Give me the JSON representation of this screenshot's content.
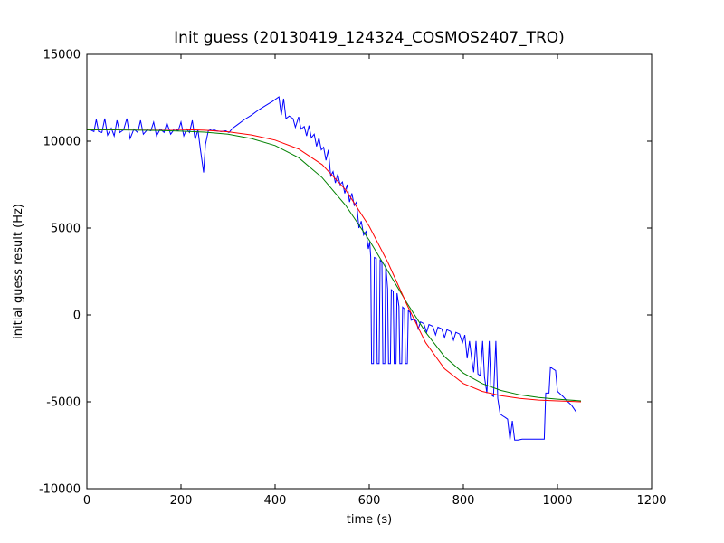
{
  "figure": {
    "background": "#ffffff",
    "axes_color": "#000000"
  },
  "chart_data": {
    "type": "line",
    "title": "Init guess (20130419_124324_COSMOS2407_TRO)",
    "xlabel": "time (s)",
    "ylabel": "initial guess result (Hz)",
    "xlim": [
      0,
      1200
    ],
    "ylim": [
      -10000,
      15000
    ],
    "xticks": [
      0,
      200,
      400,
      600,
      800,
      1000,
      1200
    ],
    "yticks": [
      -10000,
      -5000,
      0,
      5000,
      10000,
      15000
    ],
    "grid": false,
    "legend": "none",
    "series": [
      {
        "name": "blue-noisy-initial-guess",
        "color": "#0000ff",
        "points": [
          [
            0,
            10700
          ],
          [
            8,
            10650
          ],
          [
            15,
            10550
          ],
          [
            20,
            11250
          ],
          [
            25,
            10550
          ],
          [
            32,
            10500
          ],
          [
            38,
            11300
          ],
          [
            44,
            10350
          ],
          [
            52,
            10750
          ],
          [
            58,
            10300
          ],
          [
            64,
            11200
          ],
          [
            70,
            10500
          ],
          [
            78,
            10650
          ],
          [
            85,
            11300
          ],
          [
            92,
            10150
          ],
          [
            100,
            10700
          ],
          [
            108,
            10500
          ],
          [
            114,
            11200
          ],
          [
            120,
            10400
          ],
          [
            128,
            10650
          ],
          [
            136,
            10600
          ],
          [
            142,
            11100
          ],
          [
            148,
            10300
          ],
          [
            156,
            10700
          ],
          [
            164,
            10500
          ],
          [
            170,
            11050
          ],
          [
            178,
            10400
          ],
          [
            186,
            10700
          ],
          [
            194,
            10600
          ],
          [
            200,
            11100
          ],
          [
            206,
            10300
          ],
          [
            212,
            10700
          ],
          [
            218,
            10500
          ],
          [
            224,
            11200
          ],
          [
            230,
            10100
          ],
          [
            236,
            10650
          ],
          [
            242,
            9400
          ],
          [
            248,
            8200
          ],
          [
            252,
            9800
          ],
          [
            258,
            10600
          ],
          [
            266,
            10700
          ],
          [
            275,
            10600
          ],
          [
            285,
            10550
          ],
          [
            295,
            10600
          ],
          [
            302,
            10500
          ],
          [
            310,
            10750
          ],
          [
            320,
            10950
          ],
          [
            335,
            11250
          ],
          [
            350,
            11500
          ],
          [
            365,
            11800
          ],
          [
            380,
            12050
          ],
          [
            395,
            12300
          ],
          [
            408,
            12550
          ],
          [
            413,
            11500
          ],
          [
            418,
            12450
          ],
          [
            423,
            11300
          ],
          [
            430,
            11450
          ],
          [
            438,
            11300
          ],
          [
            443,
            10800
          ],
          [
            450,
            11400
          ],
          [
            455,
            10700
          ],
          [
            462,
            10850
          ],
          [
            467,
            10300
          ],
          [
            472,
            10900
          ],
          [
            477,
            10200
          ],
          [
            483,
            10400
          ],
          [
            488,
            9700
          ],
          [
            493,
            10200
          ],
          [
            498,
            9500
          ],
          [
            503,
            9650
          ],
          [
            508,
            8900
          ],
          [
            513,
            9500
          ],
          [
            518,
            8000
          ],
          [
            523,
            8250
          ],
          [
            528,
            7600
          ],
          [
            533,
            8100
          ],
          [
            538,
            7500
          ],
          [
            543,
            7650
          ],
          [
            548,
            7000
          ],
          [
            553,
            7500
          ],
          [
            558,
            6500
          ],
          [
            563,
            7000
          ],
          [
            568,
            6300
          ],
          [
            573,
            6500
          ],
          [
            578,
            5000
          ],
          [
            583,
            5400
          ],
          [
            588,
            4600
          ],
          [
            593,
            4800
          ],
          [
            598,
            3800
          ],
          [
            601,
            4200
          ],
          [
            603,
            3350
          ],
          [
            605,
            -2800
          ],
          [
            609,
            -2800
          ],
          [
            611,
            3300
          ],
          [
            615,
            3250
          ],
          [
            617,
            -2800
          ],
          [
            621,
            -2800
          ],
          [
            623,
            3150
          ],
          [
            627,
            3050
          ],
          [
            629,
            -2800
          ],
          [
            633,
            -2800
          ],
          [
            635,
            2950
          ],
          [
            639,
            1500
          ],
          [
            641,
            -2800
          ],
          [
            645,
            -2800
          ],
          [
            647,
            1450
          ],
          [
            651,
            1350
          ],
          [
            653,
            -2800
          ],
          [
            657,
            -2800
          ],
          [
            659,
            1250
          ],
          [
            663,
            500
          ],
          [
            665,
            -2800
          ],
          [
            669,
            -2800
          ],
          [
            671,
            450
          ],
          [
            675,
            350
          ],
          [
            677,
            -2800
          ],
          [
            681,
            -2800
          ],
          [
            683,
            250
          ],
          [
            687,
            150
          ],
          [
            689,
            -300
          ],
          [
            695,
            -250
          ],
          [
            700,
            -350
          ],
          [
            704,
            -800
          ],
          [
            709,
            -400
          ],
          [
            716,
            -500
          ],
          [
            722,
            -1000
          ],
          [
            727,
            -550
          ],
          [
            735,
            -650
          ],
          [
            741,
            -1150
          ],
          [
            746,
            -700
          ],
          [
            754,
            -800
          ],
          [
            760,
            -1300
          ],
          [
            765,
            -850
          ],
          [
            773,
            -950
          ],
          [
            779,
            -1450
          ],
          [
            784,
            -1000
          ],
          [
            792,
            -1100
          ],
          [
            798,
            -1600
          ],
          [
            803,
            -1150
          ],
          [
            808,
            -2500
          ],
          [
            813,
            -1500
          ],
          [
            818,
            -2600
          ],
          [
            822,
            -3300
          ],
          [
            827,
            -1500
          ],
          [
            831,
            -3400
          ],
          [
            836,
            -3500
          ],
          [
            841,
            -1500
          ],
          [
            845,
            -3600
          ],
          [
            850,
            -4500
          ],
          [
            855,
            -1500
          ],
          [
            859,
            -4600
          ],
          [
            864,
            -4700
          ],
          [
            869,
            -1500
          ],
          [
            873,
            -4800
          ],
          [
            878,
            -5700
          ],
          [
            883,
            -5800
          ],
          [
            889,
            -5900
          ],
          [
            894,
            -6000
          ],
          [
            899,
            -7200
          ],
          [
            904,
            -6100
          ],
          [
            909,
            -7200
          ],
          [
            916,
            -7200
          ],
          [
            925,
            -7150
          ],
          [
            935,
            -7150
          ],
          [
            945,
            -7150
          ],
          [
            955,
            -7150
          ],
          [
            965,
            -7150
          ],
          [
            972,
            -7150
          ],
          [
            975,
            -4500
          ],
          [
            982,
            -4500
          ],
          [
            985,
            -3000
          ],
          [
            990,
            -3100
          ],
          [
            996,
            -3200
          ],
          [
            1000,
            -4400
          ],
          [
            1006,
            -4550
          ],
          [
            1012,
            -4700
          ],
          [
            1020,
            -4950
          ],
          [
            1030,
            -5200
          ],
          [
            1040,
            -5600
          ]
        ]
      },
      {
        "name": "green-smooth-fit",
        "color": "#008000",
        "points": [
          [
            0,
            10650
          ],
          [
            50,
            10650
          ],
          [
            100,
            10640
          ],
          [
            150,
            10620
          ],
          [
            200,
            10580
          ],
          [
            250,
            10520
          ],
          [
            300,
            10400
          ],
          [
            350,
            10150
          ],
          [
            400,
            9750
          ],
          [
            450,
            9050
          ],
          [
            500,
            7900
          ],
          [
            550,
            6300
          ],
          [
            600,
            4300
          ],
          [
            640,
            2500
          ],
          [
            680,
            700
          ],
          [
            720,
            -1000
          ],
          [
            760,
            -2400
          ],
          [
            800,
            -3350
          ],
          [
            840,
            -3950
          ],
          [
            880,
            -4350
          ],
          [
            920,
            -4600
          ],
          [
            960,
            -4750
          ],
          [
            1000,
            -4850
          ],
          [
            1050,
            -4950
          ]
        ]
      },
      {
        "name": "red-smooth-fit",
        "color": "#ff0000",
        "points": [
          [
            0,
            10700
          ],
          [
            50,
            10700
          ],
          [
            100,
            10700
          ],
          [
            150,
            10690
          ],
          [
            200,
            10670
          ],
          [
            250,
            10630
          ],
          [
            300,
            10540
          ],
          [
            350,
            10360
          ],
          [
            400,
            10060
          ],
          [
            450,
            9550
          ],
          [
            500,
            8650
          ],
          [
            550,
            7200
          ],
          [
            600,
            5100
          ],
          [
            640,
            3000
          ],
          [
            680,
            600
          ],
          [
            720,
            -1600
          ],
          [
            760,
            -3100
          ],
          [
            800,
            -3950
          ],
          [
            840,
            -4400
          ],
          [
            880,
            -4650
          ],
          [
            920,
            -4800
          ],
          [
            960,
            -4900
          ],
          [
            1000,
            -4950
          ],
          [
            1050,
            -5000
          ]
        ]
      }
    ]
  }
}
